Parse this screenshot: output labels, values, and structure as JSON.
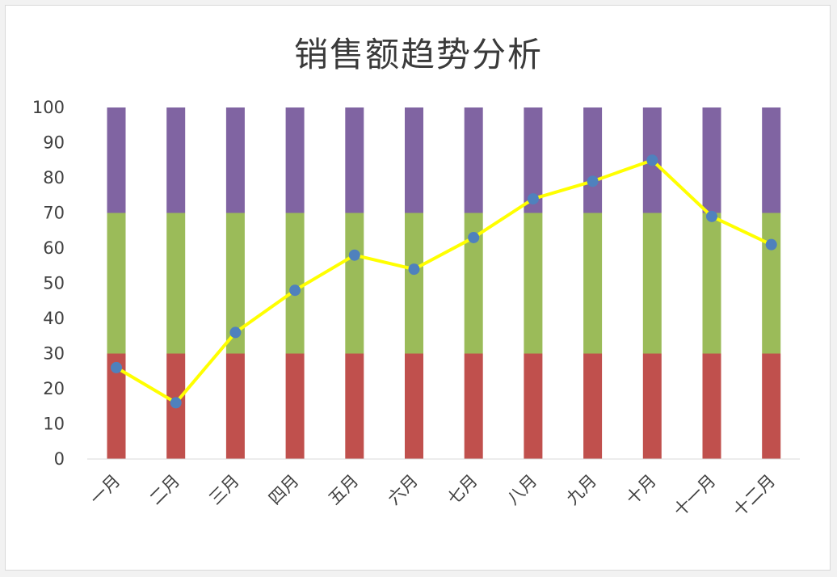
{
  "chart_data": {
    "type": "bar",
    "title": "销售额趋势分析",
    "categories": [
      "一月",
      "二月",
      "三月",
      "四月",
      "五月",
      "六月",
      "七月",
      "八月",
      "九月",
      "十月",
      "十一月",
      "十二月"
    ],
    "ylim": [
      0,
      100
    ],
    "yticks": [
      0,
      10,
      20,
      30,
      40,
      50,
      60,
      70,
      80,
      90,
      100
    ],
    "stacked_bands": [
      {
        "values": [
          30,
          30,
          30,
          30,
          30,
          30,
          30,
          30,
          30,
          30,
          30,
          30
        ],
        "color": "#c0504d"
      },
      {
        "values": [
          40,
          40,
          40,
          40,
          40,
          40,
          40,
          40,
          40,
          40,
          40,
          40
        ],
        "color": "#9bbb59"
      },
      {
        "values": [
          30,
          30,
          30,
          30,
          30,
          30,
          30,
          30,
          30,
          30,
          30,
          30
        ],
        "color": "#8064a2"
      }
    ],
    "line": {
      "values": [
        26,
        16,
        36,
        48,
        58,
        54,
        63,
        74,
        79,
        85,
        69,
        61
      ],
      "line_color": "#ffff00",
      "marker_color": "#4f81bd"
    },
    "grid": false,
    "legend": "none"
  }
}
